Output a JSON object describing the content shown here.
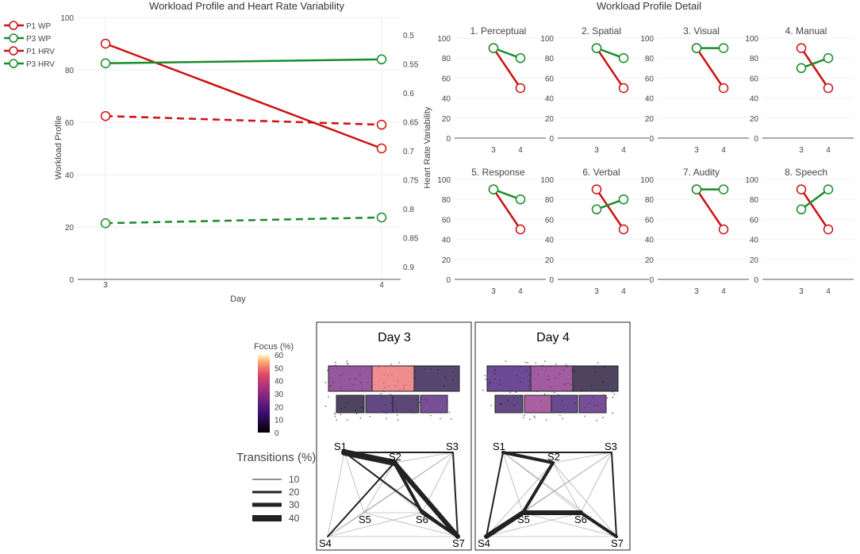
{
  "colors": {
    "red": "#cc1111",
    "green": "#1a8c2a",
    "grid": "#eeeeee",
    "axis": "#555555"
  },
  "main_chart": {
    "title": "Workload Profile and Heart Rate Variability",
    "xlabel": "Day",
    "ylabel_left": "Workload Profile",
    "ylabel_right": "Heart Rate Variability",
    "x_ticks": [
      "3",
      "4"
    ],
    "y_left_ticks": [
      "0",
      "20",
      "40",
      "60",
      "80",
      "100"
    ],
    "y_right_ticks": [
      "0.5",
      "0.55",
      "0.6",
      "0.65",
      "0.7",
      "0.75",
      "0.8",
      "0.85",
      "0.9"
    ],
    "legend": [
      "P1 WP",
      "P3 WP",
      "P1 HRV",
      "P3 HRV"
    ]
  },
  "detail": {
    "title": "Workload Profile Detail",
    "y_ticks": [
      "0",
      "20",
      "40",
      "60",
      "80",
      "100"
    ],
    "x_ticks": [
      "3",
      "4"
    ],
    "panels": [
      "1. Perceptual",
      "2. Spatial",
      "3. Visual",
      "4. Manual",
      "5. Response",
      "6. Verbal",
      "7. Audity",
      "8. Speech"
    ]
  },
  "gaze": {
    "colorbar_title": "Focus (%)",
    "colorbar_ticks": [
      "0",
      "10",
      "20",
      "30",
      "40",
      "50",
      "60"
    ],
    "transitions_title": "Transitions (%)",
    "transition_ticks": [
      "10",
      "20",
      "30",
      "40"
    ],
    "day3_title": "Day 3",
    "day4_title": "Day 4",
    "nodes": [
      "S1",
      "S2",
      "S3",
      "S4",
      "S5",
      "S6",
      "S7"
    ]
  },
  "chart_data": [
    {
      "type": "line",
      "title": "Workload Profile and Heart Rate Variability",
      "xlabel": "Day",
      "ylabel": "Workload Profile",
      "y2label": "Heart Rate Variability",
      "x": [
        3,
        4
      ],
      "ylim": [
        0,
        100
      ],
      "y2lim": [
        0.5,
        0.9
      ],
      "y2_inverted": true,
      "series": [
        {
          "name": "P1 WP",
          "axis": "left",
          "color": "red",
          "style": "solid",
          "values": [
            90,
            50
          ]
        },
        {
          "name": "P3 WP",
          "axis": "left",
          "color": "green",
          "style": "solid",
          "values": [
            82.5,
            84
          ]
        },
        {
          "name": "P1 HRV",
          "axis": "right",
          "color": "red",
          "style": "dashed",
          "values": [
            0.64,
            0.655
          ]
        },
        {
          "name": "P3 HRV",
          "axis": "right",
          "color": "green",
          "style": "dashed",
          "values": [
            0.825,
            0.815
          ]
        }
      ]
    },
    {
      "type": "line",
      "title": "Workload Profile Detail",
      "x": [
        3,
        4
      ],
      "ylim": [
        0,
        100
      ],
      "panels": [
        {
          "title": "1. Perceptual",
          "P1": [
            90,
            50
          ],
          "P3": [
            90,
            80
          ]
        },
        {
          "title": "2. Spatial",
          "P1": [
            90,
            50
          ],
          "P3": [
            90,
            80
          ]
        },
        {
          "title": "3. Visual",
          "P1": [
            90,
            50
          ],
          "P3": [
            90,
            90
          ]
        },
        {
          "title": "4. Manual",
          "P1": [
            90,
            50
          ],
          "P3": [
            70,
            80
          ]
        },
        {
          "title": "5. Response",
          "P1": [
            90,
            50
          ],
          "P3": [
            90,
            80
          ]
        },
        {
          "title": "6. Verbal",
          "P1": [
            90,
            50
          ],
          "P3": [
            70,
            80
          ]
        },
        {
          "title": "7. Audity",
          "P1": [
            90,
            50
          ],
          "P3": [
            90,
            90
          ]
        },
        {
          "title": "8. Speech",
          "P1": [
            90,
            50
          ],
          "P3": [
            70,
            90
          ]
        }
      ]
    },
    {
      "type": "heatmap",
      "title": "Focus (%)",
      "colorbar_range": [
        0,
        60
      ],
      "day3_focus": {
        "S1": 25,
        "S2": 48,
        "S3": 8,
        "S4": 5,
        "S5": 12,
        "S6": 10,
        "S7": 18
      },
      "day4_focus": {
        "S1": 15,
        "S2": 28,
        "S3": 5,
        "S4": 12,
        "S5": 30,
        "S6": 14,
        "S7": 18
      },
      "day3_transitions": [
        {
          "from": "S1",
          "to": "S2",
          "pct": 40
        },
        {
          "from": "S2",
          "to": "S7",
          "pct": 30
        },
        {
          "from": "S2",
          "to": "S6",
          "pct": 20
        },
        {
          "from": "S6",
          "to": "S7",
          "pct": 20
        },
        {
          "from": "S1",
          "to": "S7",
          "pct": 10
        },
        {
          "from": "S2",
          "to": "S4",
          "pct": 10
        },
        {
          "from": "S1",
          "to": "S3",
          "pct": 10
        },
        {
          "from": "S3",
          "to": "S7",
          "pct": 10
        }
      ],
      "day4_transitions": [
        {
          "from": "S1",
          "to": "S2",
          "pct": 20
        },
        {
          "from": "S4",
          "to": "S5",
          "pct": 30
        },
        {
          "from": "S5",
          "to": "S6",
          "pct": 30
        },
        {
          "from": "S6",
          "to": "S7",
          "pct": 20
        },
        {
          "from": "S2",
          "to": "S5",
          "pct": 20
        },
        {
          "from": "S1",
          "to": "S4",
          "pct": 10
        },
        {
          "from": "S1",
          "to": "S3",
          "pct": 10
        },
        {
          "from": "S3",
          "to": "S7",
          "pct": 10
        }
      ]
    }
  ]
}
